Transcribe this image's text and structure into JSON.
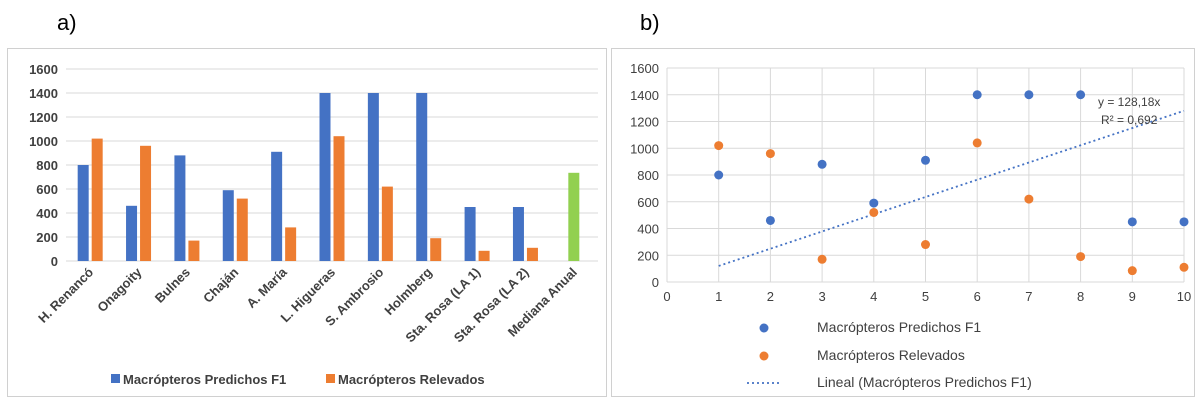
{
  "panels": {
    "a_label": "a)",
    "b_label": "b)"
  },
  "colors": {
    "blue": "#4472C4",
    "orange": "#ED7D31",
    "green": "#92D050",
    "grid": "#d9d9d9",
    "axis_text": "#404040"
  },
  "chart_data": [
    {
      "type": "bar",
      "title": "",
      "xlabel": "",
      "ylabel": "",
      "ylim": [
        0,
        1600
      ],
      "yticks": [
        0,
        200,
        400,
        600,
        800,
        1000,
        1200,
        1400,
        1600
      ],
      "categories": [
        "H. Renancó",
        "Onagoity",
        "Bulnes",
        "Chaján",
        "A. María",
        "L. Higueras",
        "S. Ambrosio",
        "Holmberg",
        "Sta. Rosa (LA 1)",
        "Sta. Rosa (LA 2)",
        "Mediana Anual"
      ],
      "series": [
        {
          "name": "Macrópteros Predichos F1",
          "color": "#4472C4",
          "values": [
            800,
            460,
            880,
            590,
            910,
            1400,
            1400,
            1400,
            450,
            450,
            null
          ]
        },
        {
          "name": "Macrópteros Relevados",
          "color": "#ED7D31",
          "values": [
            1020,
            960,
            170,
            520,
            280,
            1040,
            620,
            190,
            85,
            110,
            null
          ]
        },
        {
          "name": "",
          "color": "#92D050",
          "values": [
            null,
            null,
            null,
            null,
            null,
            null,
            null,
            null,
            null,
            null,
            735
          ]
        }
      ],
      "legend": [
        "Macrópteros Predichos F1",
        "Macrópteros Relevados"
      ],
      "legend_position": "bottom",
      "grid": true
    },
    {
      "type": "scatter",
      "title": "",
      "xlabel": "",
      "ylabel": "",
      "xlim": [
        0,
        10
      ],
      "ylim": [
        0,
        1600
      ],
      "xticks": [
        0,
        1,
        2,
        3,
        4,
        5,
        6,
        7,
        8,
        9,
        10
      ],
      "yticks": [
        0,
        200,
        400,
        600,
        800,
        1000,
        1200,
        1400,
        1600
      ],
      "series": [
        {
          "name": "Macrópteros Predichos F1",
          "color": "#4472C4",
          "x": [
            1,
            2,
            3,
            4,
            5,
            6,
            7,
            8,
            9,
            10
          ],
          "y": [
            800,
            460,
            880,
            590,
            910,
            1400,
            1400,
            1400,
            450,
            450
          ]
        },
        {
          "name": "Macrópteros Relevados",
          "color": "#ED7D31",
          "x": [
            1,
            2,
            3,
            4,
            5,
            6,
            7,
            8,
            9,
            10
          ],
          "y": [
            1020,
            960,
            170,
            520,
            280,
            1040,
            620,
            190,
            85,
            110
          ]
        }
      ],
      "trendline": {
        "name": "Lineal (Macrópteros Predichos F1)",
        "color": "#4472C4",
        "slope": 128.18,
        "intercept": 0,
        "x_range": [
          1,
          10
        ],
        "y_range": [
          120,
          1280
        ],
        "equation_label": "y = 128,18x",
        "r2_label": "R² = 0,692"
      },
      "legend": [
        "Macrópteros Predichos F1",
        "Macrópteros Relevados",
        "Lineal (Macrópteros Predichos F1)"
      ],
      "legend_position": "bottom",
      "grid": true
    }
  ]
}
